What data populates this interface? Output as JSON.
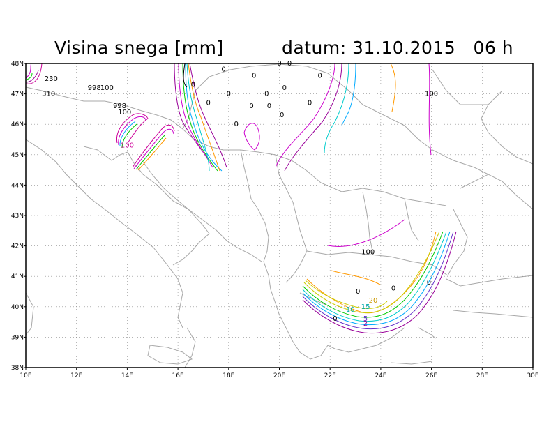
{
  "title": "Visina snega [mm]",
  "datetime": "datum: 31.10.2015   06 h",
  "axes": {
    "x_ticks": [
      "10E",
      "12E",
      "14E",
      "16E",
      "18E",
      "20E",
      "22E",
      "24E",
      "26E",
      "28E",
      "30E"
    ],
    "y_ticks": [
      "38N",
      "39N",
      "40N",
      "41N",
      "42N",
      "43N",
      "44N",
      "45N",
      "46N",
      "47N",
      "48N"
    ]
  },
  "contour_labels": [
    {
      "text": "230",
      "lon": 11.0,
      "lat": 47.5,
      "color": "#000000"
    },
    {
      "text": "310",
      "lon": 10.9,
      "lat": 47.0,
      "color": "#000000"
    },
    {
      "text": "998",
      "lon": 12.7,
      "lat": 47.2,
      "color": "#000000"
    },
    {
      "text": "100",
      "lon": 13.2,
      "lat": 47.2,
      "color": "#000000"
    },
    {
      "text": "998",
      "lon": 13.7,
      "lat": 46.6,
      "color": "#000000"
    },
    {
      "text": "100",
      "lon": 13.9,
      "lat": 46.4,
      "color": "#000000"
    },
    {
      "text": "100",
      "lon": 14.0,
      "lat": 45.3,
      "color": "#cc0099"
    },
    {
      "text": "0",
      "lon": 16.6,
      "lat": 47.3,
      "color": "#000000"
    },
    {
      "text": "0",
      "lon": 17.2,
      "lat": 46.7,
      "color": "#000000"
    },
    {
      "text": "0",
      "lon": 17.8,
      "lat": 47.8,
      "color": "#000000"
    },
    {
      "text": "0",
      "lon": 18.0,
      "lat": 47.0,
      "color": "#000000"
    },
    {
      "text": "0",
      "lon": 18.3,
      "lat": 46.0,
      "color": "#000000"
    },
    {
      "text": "0",
      "lon": 18.9,
      "lat": 46.6,
      "color": "#000000"
    },
    {
      "text": "0",
      "lon": 19.6,
      "lat": 46.6,
      "color": "#000000"
    },
    {
      "text": "0",
      "lon": 19.0,
      "lat": 47.6,
      "color": "#000000"
    },
    {
      "text": "0",
      "lon": 19.5,
      "lat": 47.0,
      "color": "#000000"
    },
    {
      "text": "0",
      "lon": 20.0,
      "lat": 48.0,
      "color": "#000000"
    },
    {
      "text": "0",
      "lon": 20.4,
      "lat": 48.0,
      "color": "#000000"
    },
    {
      "text": "0",
      "lon": 20.2,
      "lat": 47.2,
      "color": "#000000"
    },
    {
      "text": "0",
      "lon": 20.1,
      "lat": 46.3,
      "color": "#000000"
    },
    {
      "text": "0",
      "lon": 21.2,
      "lat": 46.7,
      "color": "#000000"
    },
    {
      "text": "0",
      "lon": 21.6,
      "lat": 47.6,
      "color": "#000000"
    },
    {
      "text": "100",
      "lon": 26.0,
      "lat": 47.0,
      "color": "#000000"
    },
    {
      "text": "100",
      "lon": 23.5,
      "lat": 41.8,
      "color": "#000000"
    },
    {
      "text": "0",
      "lon": 25.9,
      "lat": 40.8,
      "color": "#000000"
    },
    {
      "text": "0",
      "lon": 24.5,
      "lat": 40.6,
      "color": "#000000"
    },
    {
      "text": "0",
      "lon": 23.1,
      "lat": 40.5,
      "color": "#000000"
    },
    {
      "text": "20",
      "lon": 23.7,
      "lat": 40.2,
      "color": "#cc9900"
    },
    {
      "text": "15",
      "lon": 23.4,
      "lat": 40.0,
      "color": "#00aaaa"
    },
    {
      "text": "10",
      "lon": 22.8,
      "lat": 39.9,
      "color": "#00aaaa"
    },
    {
      "text": "5",
      "lon": 23.4,
      "lat": 39.6,
      "color": "#6633cc"
    },
    {
      "text": "2",
      "lon": 23.4,
      "lat": 39.45,
      "color": "#990099"
    },
    {
      "text": "0",
      "lon": 22.2,
      "lat": 39.6,
      "color": "#000000"
    }
  ]
}
